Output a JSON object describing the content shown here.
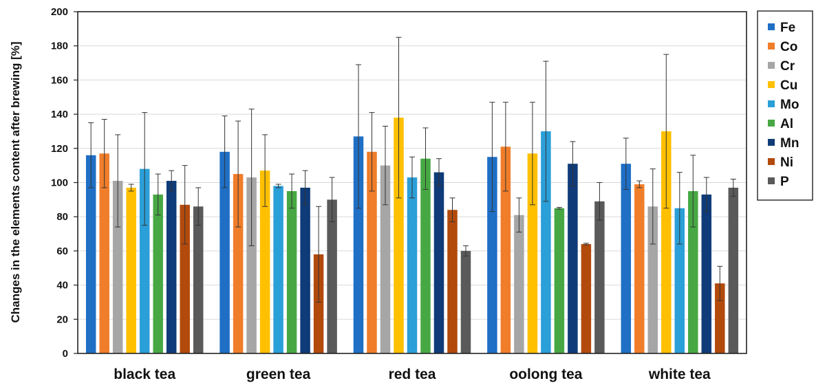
{
  "chart_data": {
    "type": "bar",
    "title": "",
    "xlabel": "",
    "ylabel": "Changes in the elements content after brewing [%]",
    "ylim": [
      0,
      200
    ],
    "yticks": [
      0,
      20,
      40,
      60,
      80,
      100,
      120,
      140,
      160,
      180,
      200
    ],
    "grid": true,
    "legend_position": "right",
    "error_bars": true,
    "categories": [
      "black tea",
      "green tea",
      "red tea",
      "oolong tea",
      "white tea"
    ],
    "series": [
      {
        "name": "Fe",
        "color": "#1f6fc5",
        "values": [
          116,
          118,
          127,
          115,
          111
        ],
        "error": [
          19,
          21,
          42,
          32,
          15
        ]
      },
      {
        "name": "Co",
        "color": "#f07d2a",
        "values": [
          117,
          105,
          118,
          121,
          99
        ],
        "error": [
          20,
          31,
          23,
          26,
          2
        ]
      },
      {
        "name": "Cr",
        "color": "#a6a6a6",
        "values": [
          101,
          103,
          110,
          81,
          86
        ],
        "error": [
          27,
          40,
          23,
          10,
          22
        ]
      },
      {
        "name": "Cu",
        "color": "#ffc000",
        "values": [
          97,
          107,
          138,
          117,
          130
        ],
        "error": [
          2,
          21,
          47,
          30,
          45
        ]
      },
      {
        "name": "Mo",
        "color": "#2b9fd8",
        "values": [
          108,
          98,
          103,
          130,
          85
        ],
        "error": [
          33,
          1,
          12,
          41,
          21
        ]
      },
      {
        "name": "Al",
        "color": "#47a843",
        "values": [
          93,
          95,
          114,
          85,
          95
        ],
        "error": [
          12,
          10,
          18,
          0.5,
          21
        ]
      },
      {
        "name": "Mn",
        "color": "#0f3b78",
        "values": [
          101,
          97,
          106,
          111,
          93
        ],
        "error": [
          6,
          10,
          8,
          13,
          10
        ]
      },
      {
        "name": "Ni",
        "color": "#b24a0c",
        "values": [
          87,
          58,
          84,
          64,
          41
        ],
        "error": [
          23,
          28,
          7,
          0.5,
          10
        ]
      },
      {
        "name": "P",
        "color": "#5a5a5a",
        "values": [
          86,
          90,
          60,
          89,
          97
        ],
        "error": [
          11,
          13,
          3,
          11,
          5
        ]
      }
    ]
  }
}
